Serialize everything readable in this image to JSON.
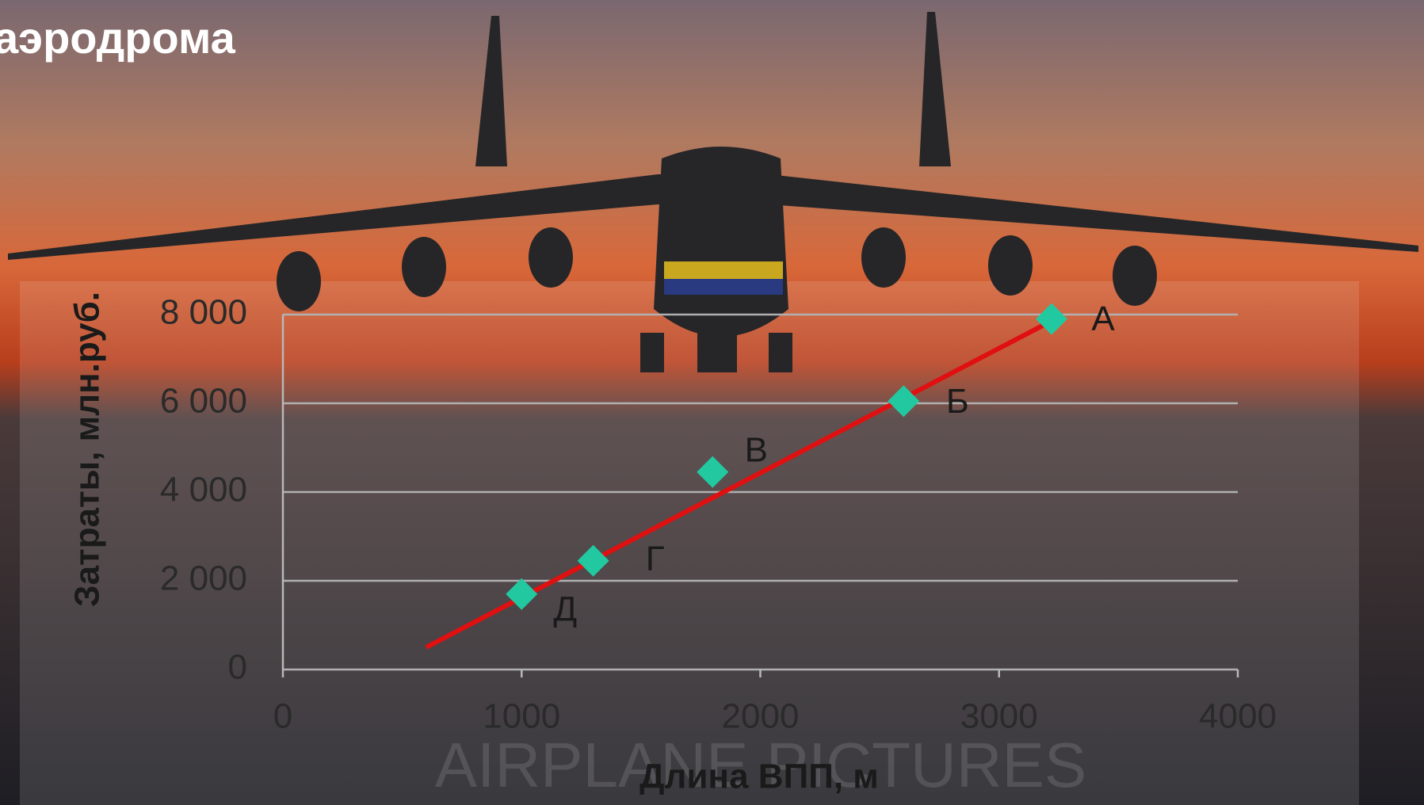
{
  "title": "аэродрома",
  "watermark": "AIRPLANE PICTURES",
  "chart_data": {
    "type": "scatter",
    "x_label": "Длина ВПП, м",
    "y_label": "Затраты, млн.руб.",
    "x": [
      1000,
      1300,
      1800,
      2600,
      3220
    ],
    "values": [
      1700,
      2450,
      4450,
      6050,
      7900
    ],
    "point_labels": [
      "Д",
      "Г",
      "В",
      "Б",
      "А"
    ],
    "color": "#22c9a0",
    "trendline": {
      "color": "#e01010",
      "x": [
        600,
        3200
      ],
      "values": [
        500,
        7800
      ]
    },
    "xlim": [
      0,
      4000
    ],
    "xticks": [
      0,
      1000,
      2000,
      3000,
      4000
    ],
    "ylim": [
      0,
      8000
    ],
    "yticks": [
      0,
      {
        "value": 2000,
        "label": "2 000"
      },
      {
        "value": 4000,
        "label": "4 000"
      },
      {
        "value": 6000,
        "label": "6 000"
      },
      {
        "value": 8000,
        "label": "8 000"
      }
    ],
    "grid": true
  }
}
